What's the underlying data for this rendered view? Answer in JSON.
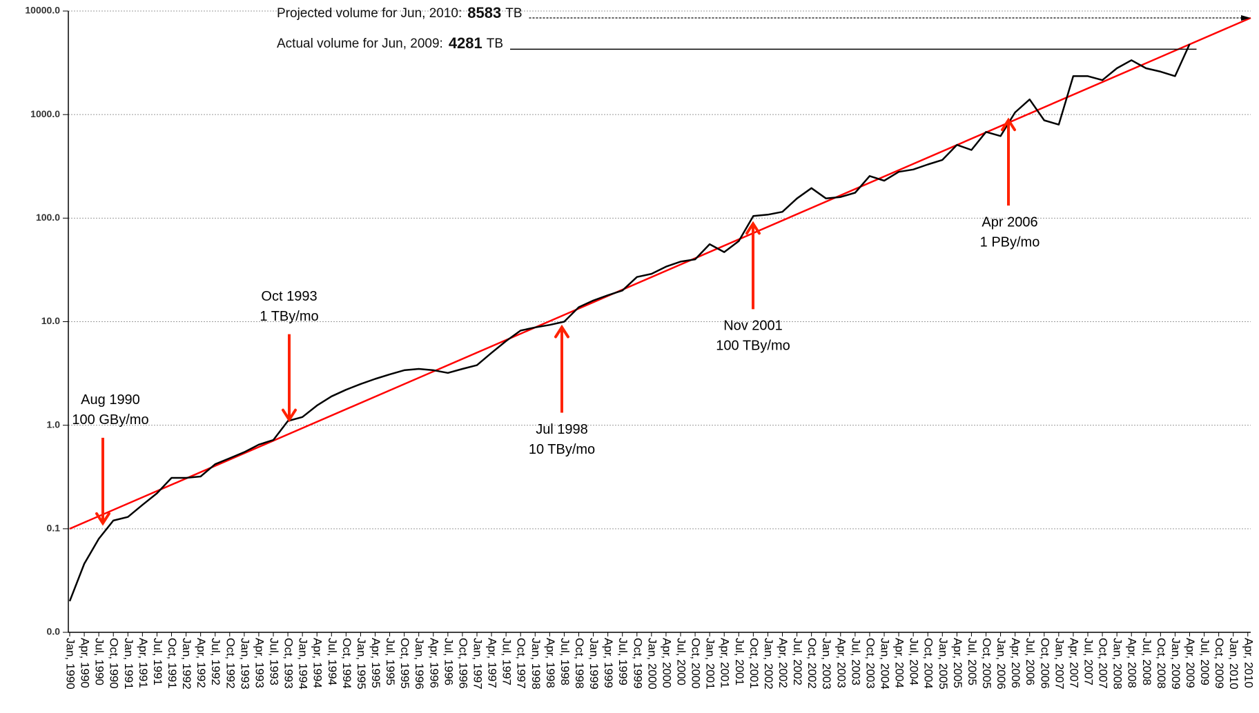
{
  "chart_data": {
    "type": "line",
    "categories": [
      "Jan, 1990",
      "Apr, 1990",
      "Jul, 1990",
      "Oct, 1990",
      "Jan, 1991",
      "Apr, 1991",
      "Jul, 1991",
      "Oct, 1991",
      "Jan, 1992",
      "Apr, 1992",
      "Jul, 1992",
      "Oct, 1992",
      "Jan, 1993",
      "Apr, 1993",
      "Jul, 1993",
      "Oct, 1993",
      "Jan, 1994",
      "Apr, 1994",
      "Jul, 1994",
      "Oct, 1994",
      "Jan, 1995",
      "Apr, 1995",
      "Jul, 1995",
      "Oct, 1995",
      "Jan, 1996",
      "Apr, 1996",
      "Jul, 1996",
      "Oct, 1996",
      "Jan, 1997",
      "Apr, 1997",
      "Jul, 1997",
      "Oct, 1997",
      "Jan, 1998",
      "Apr, 1998",
      "Jul, 1998",
      "Oct, 1998",
      "Jan, 1999",
      "Apr, 1999",
      "Jul, 1999",
      "Oct, 1999",
      "Jan, 2000",
      "Apr, 2000",
      "Jul, 2000",
      "Oct, 2000",
      "Jan, 2001",
      "Apr, 2001",
      "Jul, 2001",
      "Oct, 2001",
      "Jan, 2002",
      "Apr, 2002",
      "Jul, 2002",
      "Oct, 2002",
      "Jan, 2003",
      "Apr, 2003",
      "Jul, 2003",
      "Oct, 2003",
      "Jan, 2004",
      "Apr, 2004",
      "Jul, 2004",
      "Oct, 2004",
      "Jan, 2005",
      "Apr, 2005",
      "Jul, 2005",
      "Oct, 2005",
      "Jan, 2006",
      "Apr, 2006",
      "Jul, 2006",
      "Oct, 2006",
      "Jan, 2007",
      "Apr, 2007",
      "Jul, 2007",
      "Oct, 2007",
      "Jan, 2008",
      "Apr, 2008",
      "Jul, 2008",
      "Oct, 2008",
      "Jan, 2009",
      "Apr, 2009",
      "Jul, 2009",
      "Oct, 2009",
      "Jan, 2010",
      "Apr, 2010"
    ],
    "series": [
      {
        "color": "#000000",
        "values": [
          0.02,
          0.046,
          0.08,
          0.12,
          0.13,
          0.17,
          0.22,
          0.31,
          0.31,
          0.32,
          0.42,
          0.48,
          0.55,
          0.65,
          0.72,
          1.1,
          1.2,
          1.55,
          1.9,
          2.2,
          2.5,
          2.8,
          3.1,
          3.4,
          3.5,
          3.4,
          3.2,
          3.5,
          3.8,
          5.0,
          6.5,
          8.2,
          8.8,
          9.3,
          10,
          13.8,
          16,
          18,
          20,
          27,
          29,
          34,
          38,
          40,
          56,
          47,
          60,
          105,
          108,
          115,
          155,
          195,
          155,
          160,
          176,
          255,
          230,
          280,
          295,
          330,
          365,
          510,
          455,
          680,
          620,
          1050,
          1400,
          880,
          800,
          2350,
          2350,
          2150,
          2800,
          3350,
          2800,
          2600,
          2350,
          4800,
          null,
          null,
          null,
          null
        ]
      }
    ],
    "trend": {
      "color": "#ff0000",
      "values": [
        0.1,
        8583
      ]
    },
    "log_scale": true,
    "grid": true,
    "ylim": [
      0.01,
      10000
    ],
    "yticks": [
      {
        "value": 0.01,
        "label": "0.0"
      },
      {
        "value": 0.1,
        "label": "0.1"
      },
      {
        "value": 1,
        "label": "1.0"
      },
      {
        "value": 10,
        "label": "10.0"
      },
      {
        "value": 100,
        "label": "100.0"
      },
      {
        "value": 1000,
        "label": "1000.0"
      },
      {
        "value": 10000,
        "label": "10000.0"
      }
    ],
    "annotations": [
      {
        "text": "Projected volume for Jun, 2010:",
        "value": 8583,
        "unit": "TB"
      },
      {
        "text": "Actual volume for Jun, 2009:",
        "value": 4281,
        "unit": "TB"
      }
    ],
    "arrows": [
      {
        "lines": [
          "Aug 1990",
          "100 GBy/mo"
        ],
        "value": 0.1,
        "direction": "down",
        "color": "#ff2200"
      },
      {
        "lines": [
          "Oct 1993",
          "1 TBy/mo"
        ],
        "value": 1,
        "direction": "down",
        "color": "#ff2200"
      },
      {
        "lines": [
          "Jul 1998",
          "10 TBy/mo"
        ],
        "value": 10,
        "direction": "up",
        "color": "#ff2200"
      },
      {
        "lines": [
          "Nov 2001",
          "100 TBy/mo"
        ],
        "value": 100,
        "direction": "up",
        "color": "#ff2200"
      },
      {
        "lines": [
          "Apr 2006",
          "1 PBy/mo"
        ],
        "value": 1000,
        "direction": "up",
        "color": "#ff2200"
      }
    ]
  }
}
